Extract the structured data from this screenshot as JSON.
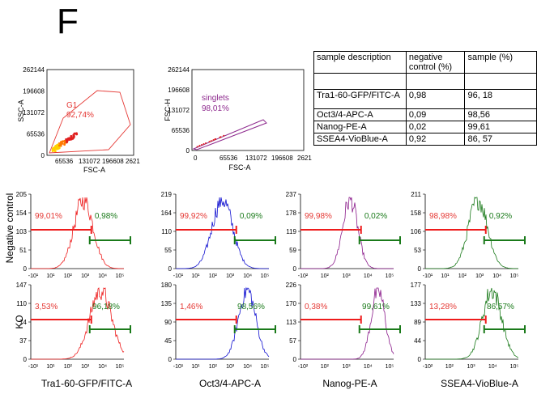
{
  "panel_label": "F",
  "colors": {
    "gate": "#e53935",
    "singlets": "#8e2a8e",
    "red": "#ee1c1c",
    "blue": "#1010d0",
    "purple": "#8a1a8a",
    "green": "#1a7a1a",
    "neg_text": "#e53935",
    "pos_text": "#1a7a1a"
  },
  "row_labels": [
    "Negative control",
    "KO"
  ],
  "col_labels": [
    "Tra1-60-GFP/FITC-A",
    "Oct3/4-APC-A",
    "Nanog-PE-A",
    "SSEA4-VioBlue-A"
  ],
  "table": {
    "headers": [
      "sample description",
      "negative control (%)",
      "sample (%)"
    ],
    "rows": [
      [
        "",
        "",
        ""
      ],
      [
        "Tra1-60-GFP/FITC-A",
        "0,98",
        "96, 18"
      ],
      [
        "Oct3/4-APC-A",
        "0,09",
        "98,56"
      ],
      [
        "Nanog-PE-A",
        "0,02",
        "99,61"
      ],
      [
        "SSEA4-VioBlue-A",
        "0,92",
        "86, 57"
      ]
    ]
  },
  "chart_data": [
    {
      "type": "scatter",
      "xlabel": "FSC-A",
      "ylabel": "SSC-A",
      "xticks": [
        "65536",
        "131072",
        "196608",
        "2621"
      ],
      "yticks": [
        "262144",
        "196608",
        "131072",
        "65536",
        "0"
      ],
      "gate": {
        "name": "G1",
        "percent": "92,74%"
      }
    },
    {
      "type": "scatter",
      "xlabel": "FSC-A",
      "ylabel": "FSC-H",
      "xticks": [
        "0",
        "65536",
        "131072",
        "196608",
        "2621"
      ],
      "yticks": [
        "262144",
        "196608",
        "131072",
        "65536",
        "0"
      ],
      "gate": {
        "name": "singlets",
        "percent": "98,01%"
      }
    },
    {
      "type": "area",
      "row": 0,
      "col": 0,
      "color": "red",
      "peak_log": 2.4,
      "width": 0.28,
      "yticks": [
        "205",
        "154",
        "103",
        "51",
        "0"
      ],
      "xticks": [
        "-10¹",
        "10¹",
        "10²",
        "10³",
        "10⁴",
        "10⁵"
      ],
      "neg_percent": "99,01%",
      "pos_percent": "0,98%"
    },
    {
      "type": "area",
      "row": 0,
      "col": 1,
      "color": "blue",
      "peak_log": 2.0,
      "width": 0.3,
      "yticks": [
        "219",
        "164",
        "110",
        "55",
        "0"
      ],
      "xticks": [
        "-10¹",
        "10¹",
        "10²",
        "10³",
        "10⁴",
        "10⁵"
      ],
      "neg_percent": "99,92%",
      "pos_percent": "0,09%"
    },
    {
      "type": "area",
      "row": 0,
      "col": 2,
      "color": "purple",
      "peak_log": 2.2,
      "width": 0.22,
      "yticks": [
        "237",
        "178",
        "119",
        "59",
        "0"
      ],
      "xticks": [
        "-10²",
        "10²",
        "10³",
        "10⁴",
        "10⁵"
      ],
      "neg_percent": "99,98%",
      "pos_percent": "0,02%"
    },
    {
      "type": "area",
      "row": 0,
      "col": 3,
      "color": "green",
      "peak_log": 2.4,
      "width": 0.28,
      "yticks": [
        "211",
        "158",
        "106",
        "53",
        "0"
      ],
      "xticks": [
        "-10¹",
        "10¹",
        "10²",
        "10³",
        "10⁴",
        "10⁵"
      ],
      "neg_percent": "98,98%",
      "pos_percent": "0,92%"
    },
    {
      "type": "area",
      "row": 1,
      "col": 0,
      "color": "red",
      "peak_log": 3.5,
      "width": 0.32,
      "yticks": [
        "147",
        "110",
        "74",
        "37",
        "0"
      ],
      "xticks": [
        "-10¹",
        "10¹",
        "10²",
        "10³",
        "10⁴",
        "10⁵"
      ],
      "neg_percent": "3,53%",
      "pos_percent": "96,18%"
    },
    {
      "type": "area",
      "row": 1,
      "col": 1,
      "color": "blue",
      "peak_log": 3.6,
      "width": 0.25,
      "yticks": [
        "180",
        "135",
        "90",
        "45",
        "0"
      ],
      "xticks": [
        "-10¹",
        "10¹",
        "10²",
        "10³",
        "10⁴",
        "10⁵"
      ],
      "neg_percent": "1,46%",
      "pos_percent": "98,56%"
    },
    {
      "type": "area",
      "row": 1,
      "col": 2,
      "color": "purple",
      "peak_log": 4.0,
      "width": 0.2,
      "yticks": [
        "226",
        "170",
        "113",
        "57",
        "0"
      ],
      "xticks": [
        "-10²",
        "10²",
        "10³",
        "10⁴",
        "10⁵"
      ],
      "neg_percent": "0,38%",
      "pos_percent": "99,61%"
    },
    {
      "type": "area",
      "row": 1,
      "col": 3,
      "color": "green",
      "peak_log": 3.3,
      "width": 0.28,
      "yticks": [
        "177",
        "133",
        "89",
        "44",
        "0"
      ],
      "xticks": [
        "-10²",
        "10²",
        "10³",
        "10⁴",
        "10⁵"
      ],
      "neg_percent": "13,28%",
      "pos_percent": "86,57%"
    }
  ]
}
